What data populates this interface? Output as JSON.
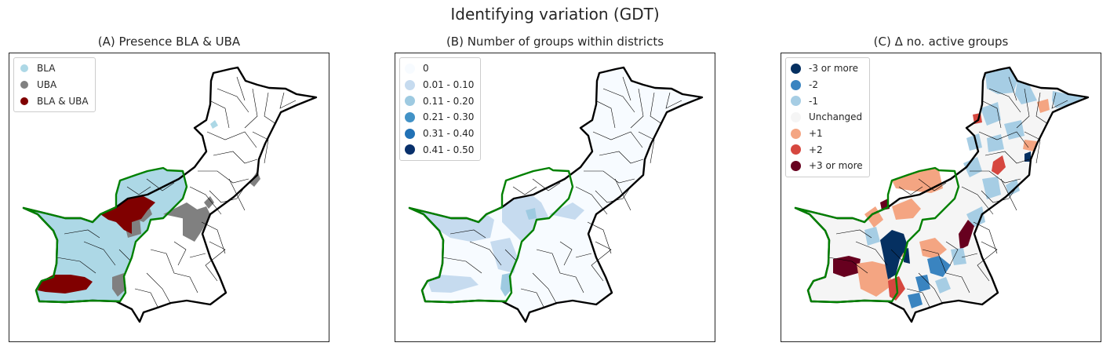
{
  "title": "Identifying variation (GDT)",
  "panels": [
    {
      "id": "A",
      "title": "(A) Presence BLA & UBA",
      "legend": [
        {
          "label": "BLA",
          "color": "#add8e6"
        },
        {
          "label": "UBA",
          "color": "#808080"
        },
        {
          "label": "BLA & UBA",
          "color": "#800000"
        }
      ]
    },
    {
      "id": "B",
      "title": "(B) Number of groups within districts",
      "legend": [
        {
          "label": "0",
          "color": "#f7fbff"
        },
        {
          "label": "0.01 - 0.10",
          "color": "#c6dbef"
        },
        {
          "label": "0.11 - 0.20",
          "color": "#9ecae1"
        },
        {
          "label": "0.21 - 0.30",
          "color": "#4292c6"
        },
        {
          "label": "0.31 - 0.40",
          "color": "#2171b5"
        },
        {
          "label": "0.41 - 0.50",
          "color": "#08306b"
        }
      ]
    },
    {
      "id": "C",
      "title": "(C) Δ no. active groups",
      "legend": [
        {
          "label": "-3 or more",
          "color": "#053061"
        },
        {
          "label": "-2",
          "color": "#3a84c0"
        },
        {
          "label": "-1",
          "color": "#a6cde4"
        },
        {
          "label": "Unchanged",
          "color": "#f5f5f5"
        },
        {
          "label": "+1",
          "color": "#f4a582"
        },
        {
          "label": "+2",
          "color": "#d6473f"
        },
        {
          "label": "+3 or more",
          "color": "#67001f"
        }
      ]
    }
  ]
}
